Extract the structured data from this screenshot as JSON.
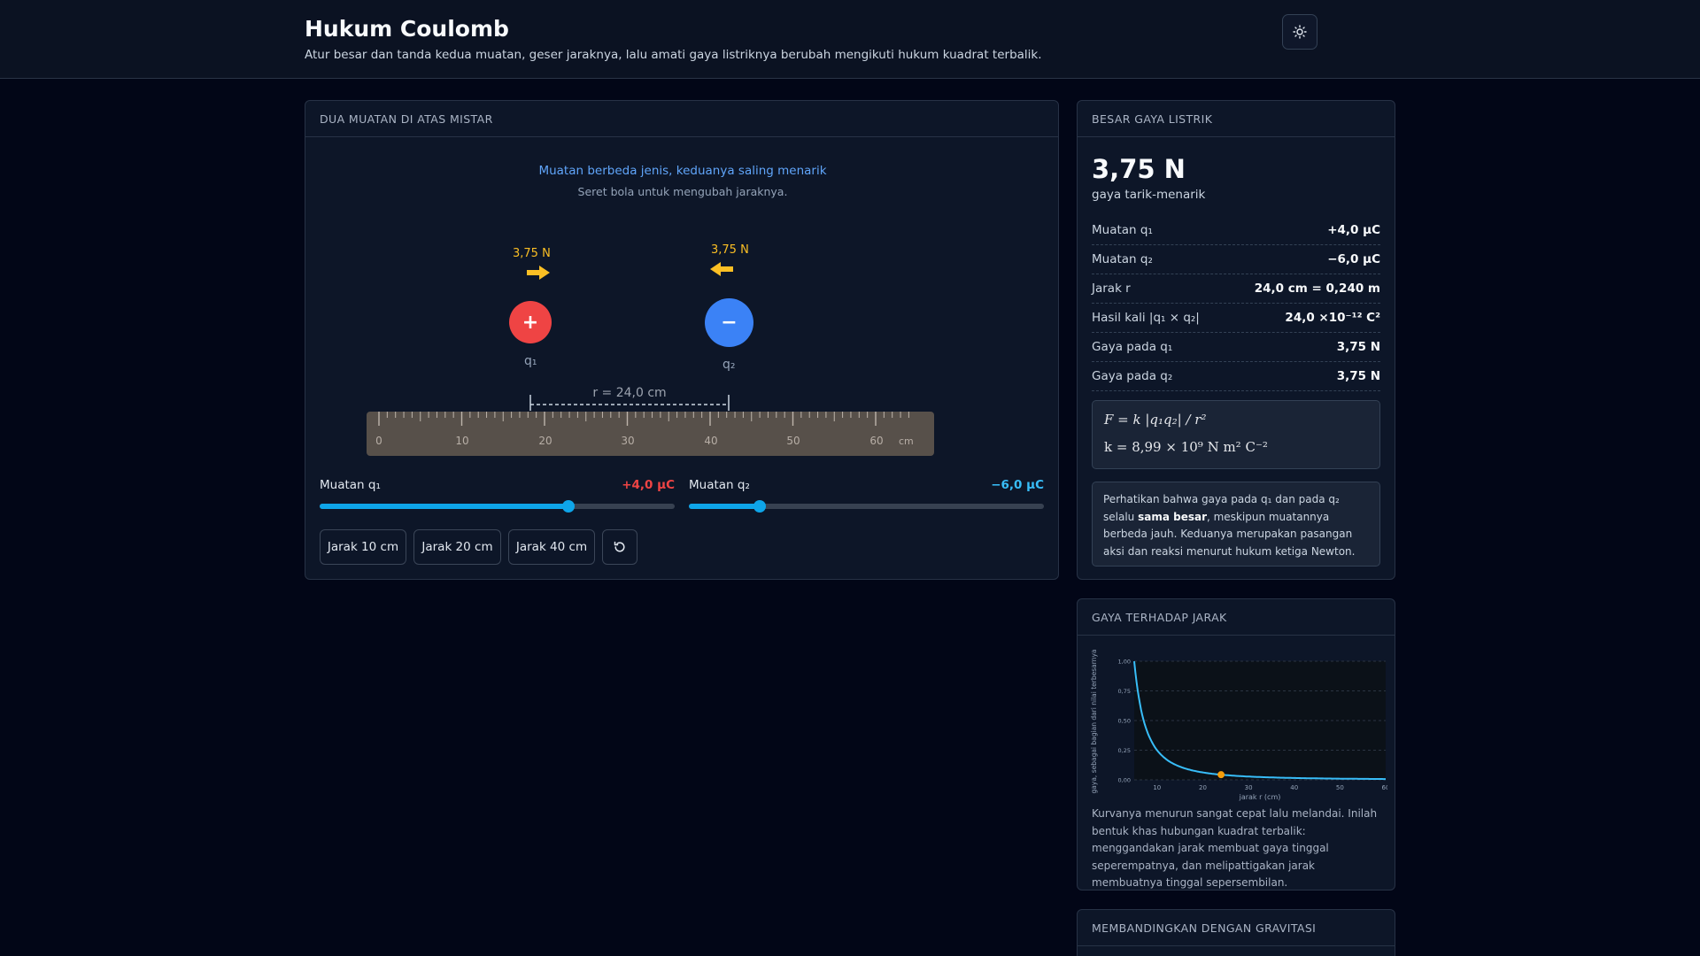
{
  "header": {
    "title": "Hukum Coulomb",
    "subtitle": "Atur besar dan tanda kedua muatan, geser jaraknya, lalu amati gaya listriknya berubah mengikuti hukum kuadrat terbalik.",
    "theme_icon": "sun-icon"
  },
  "sim": {
    "card_title": "DUA MUATAN DI ATAS MISTAR",
    "status": "Muatan berbeda jenis, keduanya saling menarik",
    "hint": "Seret bola untuk mengubah jaraknya.",
    "q1": {
      "sign": "+",
      "name": "q₁",
      "force_label": "3,75 N",
      "color": "#ef4444",
      "position_cm": 18
    },
    "q2": {
      "sign": "−",
      "name": "q₂",
      "force_label": "3,75 N",
      "color": "#3b82f6",
      "position_cm": 42
    },
    "distance_label": "r = 24,0 cm",
    "ruler": {
      "min": 0,
      "max": 65,
      "major_step": 10,
      "unit": "cm",
      "labels": [
        "0",
        "10",
        "20",
        "30",
        "40",
        "50",
        "60"
      ]
    },
    "slider_q1": {
      "label": "Muatan q₁",
      "value": "+4,0 μC",
      "value_color": "#ef4444",
      "min": -10,
      "max": 10,
      "current": 4
    },
    "slider_q2": {
      "label": "Muatan q₂",
      "value": "−6,0 μC",
      "value_color": "#38bdf8",
      "min": -10,
      "max": 10,
      "current": -6
    },
    "buttons": [
      "Jarak 10 cm",
      "Jarak 20 cm",
      "Jarak 40 cm"
    ],
    "reset_icon": "reset-icon"
  },
  "force": {
    "card_title": "BESAR GAYA LISTRIK",
    "value": "3,75 N",
    "desc": "gaya tarik-menarik",
    "rows": [
      {
        "label": "Muatan q₁",
        "value": "+4,0 μC"
      },
      {
        "label": "Muatan q₂",
        "value": "−6,0 μC"
      },
      {
        "label": "Jarak r",
        "value": "24,0 cm = 0,240 m"
      },
      {
        "label": "Hasil kali |q₁ × q₂|",
        "value": "24,0 ×10⁻¹² C²"
      },
      {
        "label": "Gaya pada q₁",
        "value": "3,75 N"
      },
      {
        "label": "Gaya pada q₂",
        "value": "3,75 N"
      }
    ],
    "formula_1": "F = k |q₁q₂| / r²",
    "formula_2": "k = 8,99 × 10⁹ N m² C⁻²",
    "note_a": "Perhatikan bahwa gaya pada q₁ dan pada q₂ selalu ",
    "note_b": "sama besar",
    "note_c": ", meskipun muatannya berbeda jauh. Keduanya merupakan pasangan aksi dan reaksi menurut hukum ketiga Newton."
  },
  "graph": {
    "card_title": "GAYA TERHADAP JARAK",
    "description": "Kurvanya menurun sangat cepat lalu melandai. Inilah bentuk khas hubungan kuadrat terbalik: menggandakan jarak membuat gaya tinggal seperempatnya, dan melipattigakan jarak membuatnya tinggal sepersembilan.",
    "chart_data": {
      "type": "line",
      "xlabel": "jarak r (cm)",
      "ylabel": "gaya, sebagai bagian dari nilai terbesarnya",
      "xlim": [
        5,
        60
      ],
      "ylim": [
        0,
        1
      ],
      "x_ticks": [
        "10",
        "20",
        "30",
        "40",
        "50",
        "60"
      ],
      "y_ticks": [
        "0,00",
        "0,25",
        "0,50",
        "0,75",
        "1,00"
      ],
      "series": [
        {
          "formula": "(5/r)^2",
          "color": "#38bdf8"
        }
      ],
      "marker": {
        "x": 24,
        "color": "#f59e0b"
      },
      "grid": true
    }
  },
  "gravity": {
    "card_title": "MEMBANDINGKAN DENGAN GRAVITASI"
  }
}
